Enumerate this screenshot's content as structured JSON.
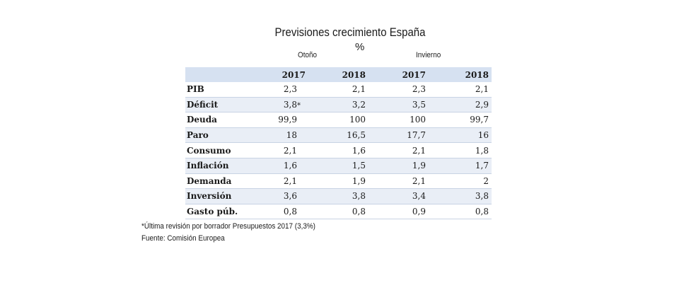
{
  "chart_data": {
    "type": "table",
    "title": "Previsiones crecimiento España",
    "subtitle": "%",
    "groups": [
      "Otoño",
      "Invierno"
    ],
    "columns": [
      "2017",
      "2018",
      "2017",
      "2018"
    ],
    "rows": [
      {
        "label": "PIB",
        "values": [
          "2,3",
          "2,1",
          "2,3",
          "2,1"
        ]
      },
      {
        "label": "Déficit",
        "values": [
          "3,8",
          "3,2",
          "3,5",
          "2,9"
        ],
        "marker": "*"
      },
      {
        "label": "Deuda",
        "values": [
          "99,9",
          "100",
          "100",
          "99,7"
        ]
      },
      {
        "label": "Paro",
        "values": [
          "18",
          "16,5",
          "17,7",
          "16"
        ]
      },
      {
        "label": "Consumo",
        "values": [
          "2,1",
          "1,6",
          "2,1",
          "1,8"
        ]
      },
      {
        "label": "Inflación",
        "values": [
          "1,6",
          "1,5",
          "1,9",
          "1,7"
        ]
      },
      {
        "label": "Demanda",
        "values": [
          "2,1",
          "1,9",
          "2,1",
          "2"
        ]
      },
      {
        "label": "Inversión",
        "values": [
          "3,6",
          "3,8",
          "3,4",
          "3,8"
        ]
      },
      {
        "label": "Gasto púb.",
        "values": [
          "0,8",
          "0,8",
          "0,9",
          "0,8"
        ]
      }
    ],
    "header_color": "#d6e1f1",
    "shaded_row_color": "#e9eef6"
  },
  "footnotes": {
    "note": "*Última revisión por borrador Presupuestos 2017 (3,3%)",
    "source": "Fuente: Comisión Europea"
  }
}
